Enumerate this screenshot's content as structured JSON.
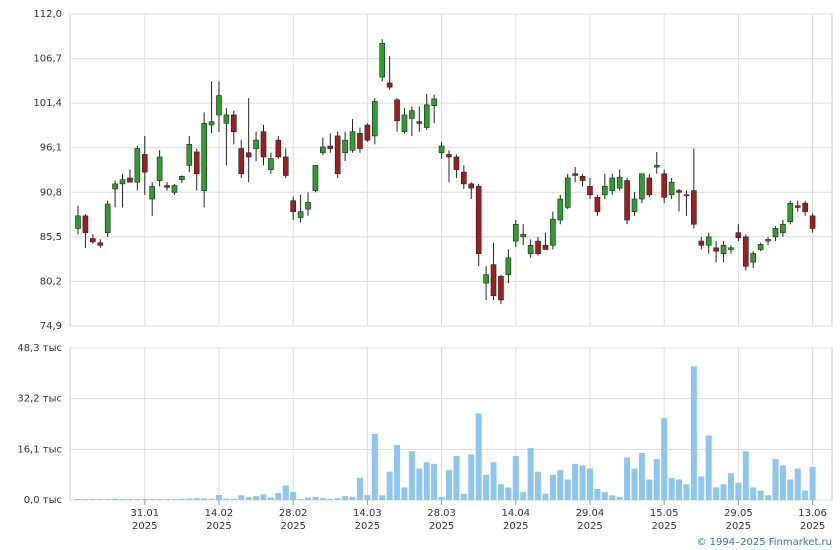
{
  "chart_data": [
    {
      "type": "candlestick",
      "categories": [
        null,
        null,
        null,
        null,
        null,
        null,
        null,
        null,
        null,
        "31.01",
        null,
        null,
        null,
        null,
        null,
        null,
        null,
        null,
        null,
        "14.02",
        null,
        null,
        null,
        null,
        null,
        null,
        null,
        null,
        null,
        "28.02",
        null,
        null,
        null,
        null,
        null,
        null,
        null,
        null,
        null,
        "14.03",
        null,
        null,
        null,
        null,
        null,
        null,
        null,
        null,
        null,
        "28.03",
        null,
        null,
        null,
        null,
        null,
        null,
        null,
        null,
        null,
        "14.04",
        null,
        null,
        null,
        null,
        null,
        null,
        null,
        null,
        null,
        "29.04",
        null,
        null,
        null,
        null,
        null,
        null,
        null,
        null,
        null,
        "15.05",
        null,
        null,
        null,
        null,
        null,
        null,
        null,
        null,
        null,
        "29.05",
        null,
        null,
        null,
        null,
        null,
        null,
        null,
        null,
        null,
        "13.06"
      ],
      "year_label": "2025",
      "open": [
        86.5,
        88.0,
        85.3,
        84.8,
        86.0,
        91.2,
        91.8,
        92.5,
        92.0,
        95.3,
        90.0,
        92.2,
        91.6,
        90.8,
        92.3,
        94.0,
        95.6,
        91.0,
        98.8,
        100.0,
        99.0,
        100.0,
        96.0,
        95.5,
        96.0,
        98.0,
        93.5,
        97.0,
        95.0,
        89.8,
        87.8,
        88.8,
        91.0,
        95.5,
        96.3,
        97.5,
        95.5,
        95.8,
        97.8,
        98.8,
        97.5,
        104.5,
        103.8,
        101.8,
        98.0,
        99.6,
        99.2,
        98.5,
        101.1,
        95.5,
        95.3,
        95.0,
        93.2,
        91.8,
        91.5,
        80.0,
        82.2,
        80.8,
        81.0,
        85.0,
        85.5,
        83.5,
        85.0,
        84.5,
        84.5,
        87.5,
        89.0,
        93.0,
        92.7,
        91.5,
        90.2,
        90.5,
        91.0,
        91.3,
        92.2,
        88.5,
        90.0,
        92.5,
        93.8,
        93.0,
        90.5,
        91.0,
        90.5,
        91.0,
        85.0,
        84.5,
        84.2,
        83.5,
        84.0,
        86.0,
        85.5,
        82.5,
        84.0,
        85.0,
        85.5,
        86.0,
        87.3,
        89.2,
        89.5,
        88.0
      ],
      "high": [
        89.2,
        88.2,
        85.8,
        85.2,
        89.8,
        92.2,
        93.0,
        93.5,
        96.3,
        97.5,
        92.0,
        95.8,
        92.0,
        91.8,
        92.8,
        97.5,
        96.0,
        100.3,
        104.0,
        104.0,
        100.8,
        100.5,
        97.0,
        102.0,
        98.0,
        98.8,
        95.5,
        97.5,
        96.0,
        90.3,
        90.5,
        90.8,
        94.0,
        97.3,
        97.8,
        98.0,
        98.0,
        99.5,
        98.5,
        99.0,
        102.0,
        109.0,
        107.0,
        102.0,
        100.8,
        101.0,
        101.0,
        102.5,
        102.4,
        96.8,
        95.8,
        95.3,
        94.0,
        92.0,
        91.8,
        82.0,
        84.8,
        81.0,
        84.0,
        87.5,
        87.0,
        85.2,
        85.5,
        86.0,
        88.5,
        90.5,
        93.0,
        93.8,
        93.0,
        92.5,
        90.5,
        93.0,
        93.0,
        93.5,
        92.5,
        90.8,
        93.0,
        93.0,
        95.6,
        93.5,
        92.5,
        91.2,
        91.0,
        96.0,
        85.5,
        86.0,
        85.0,
        85.0,
        84.5,
        87.0,
        85.8,
        83.8,
        84.8,
        85.5,
        86.8,
        87.5,
        89.8,
        89.8,
        89.8,
        88.3
      ],
      "low": [
        85.8,
        84.2,
        84.7,
        84.2,
        85.5,
        89.0,
        89.0,
        92.0,
        91.0,
        90.5,
        88.0,
        91.5,
        91.0,
        90.5,
        91.9,
        93.2,
        91.0,
        89.0,
        97.8,
        98.0,
        94.0,
        96.5,
        92.5,
        92.0,
        94.5,
        94.0,
        93.0,
        94.8,
        92.5,
        87.5,
        87.2,
        88.0,
        90.8,
        95.2,
        95.5,
        92.5,
        94.5,
        95.5,
        95.5,
        96.8,
        96.5,
        104.0,
        103.0,
        98.0,
        97.8,
        97.5,
        98.0,
        98.2,
        99.0,
        94.8,
        92.0,
        92.5,
        91.2,
        90.0,
        82.0,
        78.0,
        78.0,
        77.5,
        80.0,
        84.3,
        84.5,
        83.0,
        83.3,
        84.0,
        84.0,
        87.0,
        88.8,
        92.0,
        91.5,
        90.0,
        88.0,
        90.0,
        90.5,
        91.0,
        87.0,
        88.0,
        89.5,
        90.2,
        93.0,
        89.5,
        90.0,
        88.5,
        88.0,
        86.5,
        84.0,
        83.5,
        82.5,
        82.5,
        83.5,
        85.0,
        81.5,
        81.8,
        83.8,
        84.5,
        85.0,
        85.5,
        87.0,
        88.5,
        88.0,
        86.0
      ],
      "close": [
        88.0,
        86.0,
        84.9,
        84.5,
        89.4,
        91.8,
        92.3,
        92.0,
        96.0,
        93.2,
        91.5,
        95.0,
        91.4,
        91.6,
        92.7,
        96.5,
        93.0,
        99.0,
        99.2,
        102.3,
        100.0,
        98.0,
        93.0,
        95.0,
        97.0,
        95.0,
        94.8,
        95.0,
        92.8,
        88.5,
        88.5,
        89.6,
        94.0,
        96.2,
        96.0,
        93.0,
        97.0,
        98.0,
        96.0,
        97.0,
        101.6,
        108.5,
        103.3,
        99.3,
        100.0,
        100.5,
        99.0,
        101.2,
        101.9,
        96.3,
        95.0,
        93.5,
        91.8,
        91.3,
        83.5,
        81.0,
        78.5,
        78.0,
        83.0,
        87.0,
        85.8,
        84.5,
        83.5,
        84.0,
        87.6,
        90.0,
        92.5,
        92.8,
        92.2,
        90.5,
        88.5,
        91.5,
        92.5,
        92.6,
        87.5,
        90.0,
        93.0,
        90.5,
        94.0,
        90.2,
        92.0,
        90.8,
        90.5,
        87.0,
        84.5,
        85.5,
        83.8,
        84.5,
        84.2,
        85.4,
        82.0,
        83.5,
        84.6,
        85.2,
        86.5,
        87.0,
        89.5,
        89.0,
        88.5,
        86.5
      ],
      "up_color": "#2e9e2e",
      "down_color": "#a01e1e",
      "ylim": [
        74.9,
        112.0
      ],
      "yticks": [
        {
          "value": 74.9,
          "label": "74,9"
        },
        {
          "value": 80.2,
          "label": "80,2"
        },
        {
          "value": 85.5,
          "label": "85,5"
        },
        {
          "value": 90.8,
          "label": "90,8"
        },
        {
          "value": 96.1,
          "label": "96,1"
        },
        {
          "value": 101.4,
          "label": "101,4"
        },
        {
          "value": 106.7,
          "label": "106,7"
        },
        {
          "value": 112.0,
          "label": "112,0"
        }
      ],
      "grid": true
    },
    {
      "type": "bar",
      "values": [
        0.3,
        0.3,
        0.3,
        0.3,
        0.3,
        0.4,
        0.3,
        0.3,
        0.3,
        0.3,
        0.3,
        0.3,
        0.3,
        0.3,
        0.4,
        0.5,
        0.6,
        0.5,
        0.4,
        1.6,
        0.4,
        0.4,
        1.5,
        0.9,
        1.2,
        1.8,
        0.8,
        2.2,
        4.6,
        2.5,
        0.3,
        0.8,
        1.0,
        0.6,
        0.4,
        0.6,
        1.2,
        1.0,
        7.0,
        1.5,
        21.0,
        1.5,
        9.0,
        17.5,
        4.0,
        15.5,
        10.0,
        12.0,
        11.5,
        1.0,
        9.5,
        14.0,
        2.0,
        14.5,
        27.5,
        8.0,
        12.0,
        5.0,
        4.0,
        14.0,
        2.5,
        16.5,
        9.0,
        2.0,
        8.0,
        9.5,
        6.5,
        11.5,
        11.0,
        10.0,
        3.5,
        2.5,
        1.5,
        1.0,
        13.5,
        10.0,
        15.0,
        6.5,
        13.0,
        26.0,
        7.0,
        6.5,
        5.0,
        42.5,
        7.5,
        20.5,
        4.0,
        5.0,
        8.5,
        5.5,
        15.5,
        4.0,
        3.0,
        1.5,
        13.0,
        11.0,
        6.5,
        10.0,
        3.0,
        10.5
      ],
      "color": "#8cc6ee",
      "ylim": [
        0,
        48.3
      ],
      "yticks": [
        {
          "value": 0,
          "label": "0,0 тыс"
        },
        {
          "value": 16.1,
          "label": "16,1 тыс"
        },
        {
          "value": 32.2,
          "label": "32,2 тыс"
        },
        {
          "value": 48.3,
          "label": "48,3 тыс"
        }
      ],
      "grid": true
    }
  ],
  "footer": "© 1994–2025 Finmarket.ru"
}
